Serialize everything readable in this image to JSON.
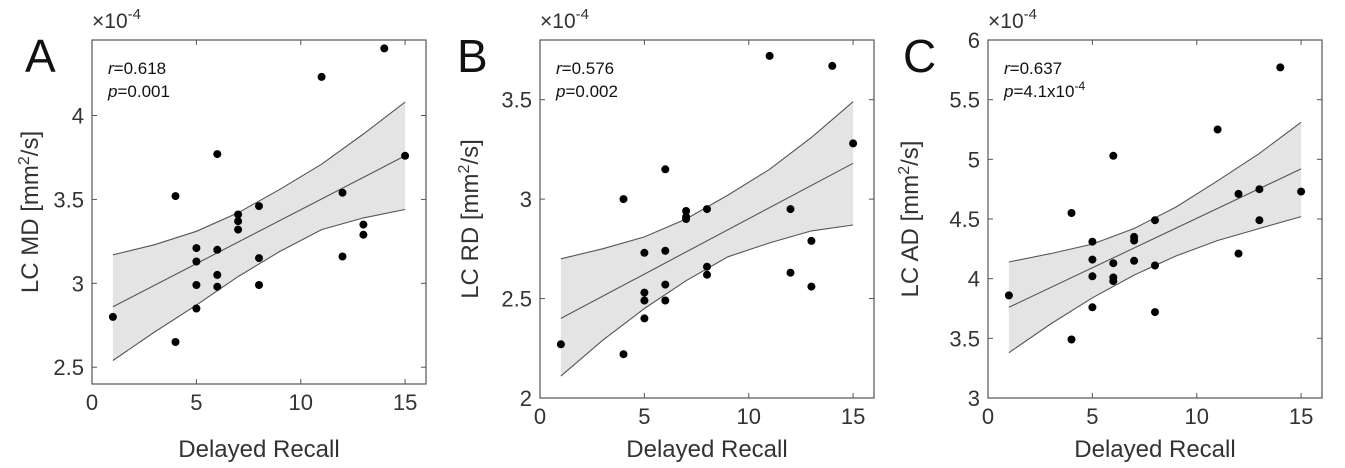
{
  "chart_data": [
    {
      "type": "scatter",
      "panel_label": "A",
      "xlabel": "Delayed Recall",
      "ylabel": "LC MD [mm²/s]",
      "y_multiplier": "×10",
      "y_multiplier_exp": "-4",
      "xlim": [
        0,
        16
      ],
      "ylim": [
        2.4,
        4.45
      ],
      "xticks": [
        0,
        5,
        10,
        15
      ],
      "yticks": [
        2.5,
        3,
        3.5,
        4
      ],
      "stats": {
        "r_label": "r",
        "r_value": "=0.618",
        "p_label": "p",
        "p_value": "=0.001",
        "p_exp": ""
      },
      "points": [
        [
          1,
          2.8
        ],
        [
          4,
          2.65
        ],
        [
          4,
          3.52
        ],
        [
          5,
          2.85
        ],
        [
          5,
          2.99
        ],
        [
          5,
          3.13
        ],
        [
          5,
          3.21
        ],
        [
          6,
          2.98
        ],
        [
          6,
          3.05
        ],
        [
          6,
          3.2
        ],
        [
          6,
          3.77
        ],
        [
          7,
          3.32
        ],
        [
          7,
          3.37
        ],
        [
          7,
          3.41
        ],
        [
          8,
          2.99
        ],
        [
          8,
          3.15
        ],
        [
          8,
          3.46
        ],
        [
          11,
          4.23
        ],
        [
          12,
          3.16
        ],
        [
          12,
          3.54
        ],
        [
          13,
          3.29
        ],
        [
          13,
          3.35
        ],
        [
          14,
          4.4
        ],
        [
          15,
          3.76
        ]
      ],
      "fit_line": [
        [
          1,
          2.86
        ],
        [
          15,
          3.76
        ]
      ],
      "ci_upper": [
        [
          1,
          3.17
        ],
        [
          3,
          3.23
        ],
        [
          5,
          3.31
        ],
        [
          7,
          3.42
        ],
        [
          9,
          3.56
        ],
        [
          11,
          3.71
        ],
        [
          13,
          3.89
        ],
        [
          15,
          4.08
        ]
      ],
      "ci_lower": [
        [
          1,
          2.54
        ],
        [
          3,
          2.71
        ],
        [
          5,
          2.87
        ],
        [
          7,
          3.04
        ],
        [
          9,
          3.19
        ],
        [
          11,
          3.32
        ],
        [
          13,
          3.39
        ],
        [
          15,
          3.44
        ]
      ]
    },
    {
      "type": "scatter",
      "panel_label": "B",
      "xlabel": "Delayed Recall",
      "ylabel": "LC RD [mm²/s]",
      "y_multiplier": "×10",
      "y_multiplier_exp": "-4",
      "xlim": [
        0,
        16
      ],
      "ylim": [
        2.0,
        3.8
      ],
      "xticks": [
        0,
        5,
        10,
        15
      ],
      "yticks": [
        2,
        2.5,
        3,
        3.5
      ],
      "stats": {
        "r_label": "r",
        "r_value": "=0.576",
        "p_label": "p",
        "p_value": "=0.002",
        "p_exp": ""
      },
      "points": [
        [
          1,
          2.27
        ],
        [
          4,
          2.22
        ],
        [
          4,
          3.0
        ],
        [
          5,
          2.4
        ],
        [
          5,
          2.49
        ],
        [
          5,
          2.53
        ],
        [
          5,
          2.73
        ],
        [
          6,
          2.49
        ],
        [
          6,
          2.57
        ],
        [
          6,
          2.74
        ],
        [
          6,
          3.15
        ],
        [
          7,
          2.9
        ],
        [
          7,
          2.91
        ],
        [
          7,
          2.94
        ],
        [
          8,
          2.62
        ],
        [
          8,
          2.66
        ],
        [
          8,
          2.95
        ],
        [
          11,
          3.72
        ],
        [
          12,
          2.63
        ],
        [
          12,
          2.95
        ],
        [
          13,
          2.56
        ],
        [
          13,
          2.79
        ],
        [
          14,
          3.67
        ],
        [
          15,
          3.28
        ]
      ],
      "fit_line": [
        [
          1,
          2.4
        ],
        [
          15,
          3.18
        ]
      ],
      "ci_upper": [
        [
          1,
          2.7
        ],
        [
          3,
          2.75
        ],
        [
          5,
          2.81
        ],
        [
          7,
          2.9
        ],
        [
          9,
          3.02
        ],
        [
          11,
          3.15
        ],
        [
          13,
          3.31
        ],
        [
          15,
          3.49
        ]
      ],
      "ci_lower": [
        [
          1,
          2.11
        ],
        [
          3,
          2.29
        ],
        [
          5,
          2.45
        ],
        [
          7,
          2.59
        ],
        [
          9,
          2.71
        ],
        [
          11,
          2.78
        ],
        [
          13,
          2.84
        ],
        [
          15,
          2.87
        ]
      ]
    },
    {
      "type": "scatter",
      "panel_label": "C",
      "xlabel": "Delayed Recall",
      "ylabel": "LC AD [mm²/s]",
      "y_multiplier": "×10",
      "y_multiplier_exp": "-4",
      "xlim": [
        0,
        16
      ],
      "ylim": [
        3.0,
        6.0
      ],
      "xticks": [
        0,
        5,
        10,
        15
      ],
      "yticks": [
        3,
        3.5,
        4,
        4.5,
        5,
        5.5,
        6
      ],
      "stats": {
        "r_label": "r",
        "r_value": "=0.637",
        "p_label": "p",
        "p_value": "=4.1x10",
        "p_exp": "-4"
      },
      "points": [
        [
          1,
          3.86
        ],
        [
          4,
          3.49
        ],
        [
          4,
          4.55
        ],
        [
          5,
          3.76
        ],
        [
          5,
          4.02
        ],
        [
          5,
          4.16
        ],
        [
          5,
          4.31
        ],
        [
          6,
          3.98
        ],
        [
          6,
          4.01
        ],
        [
          6,
          4.13
        ],
        [
          6,
          5.03
        ],
        [
          7,
          4.15
        ],
        [
          7,
          4.32
        ],
        [
          7,
          4.35
        ],
        [
          8,
          3.72
        ],
        [
          8,
          4.11
        ],
        [
          8,
          4.49
        ],
        [
          11,
          5.25
        ],
        [
          12,
          4.21
        ],
        [
          12,
          4.71
        ],
        [
          13,
          4.49
        ],
        [
          13,
          4.75
        ],
        [
          14,
          5.77
        ],
        [
          15,
          4.73
        ]
      ],
      "fit_line": [
        [
          1,
          3.76
        ],
        [
          15,
          4.92
        ]
      ],
      "ci_upper": [
        [
          1,
          4.14
        ],
        [
          3,
          4.21
        ],
        [
          5,
          4.29
        ],
        [
          7,
          4.42
        ],
        [
          9,
          4.6
        ],
        [
          11,
          4.82
        ],
        [
          13,
          5.05
        ],
        [
          15,
          5.31
        ]
      ],
      "ci_lower": [
        [
          1,
          3.38
        ],
        [
          3,
          3.62
        ],
        [
          5,
          3.84
        ],
        [
          7,
          4.03
        ],
        [
          9,
          4.19
        ],
        [
          11,
          4.32
        ],
        [
          13,
          4.42
        ],
        [
          15,
          4.52
        ]
      ]
    }
  ]
}
